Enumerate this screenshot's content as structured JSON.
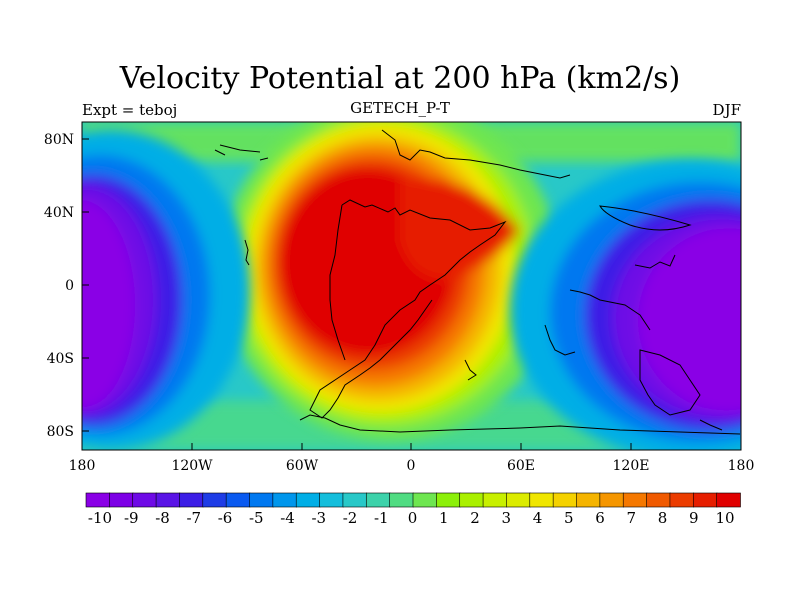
{
  "header": {
    "title": "Velocity Potential at 200 hPa (km2/s)",
    "left": "Expt = teboj",
    "center": "GETECH_P-T",
    "right": "DJF"
  },
  "map": {
    "projection": "cylindrical equidistant",
    "variable": "Velocity Potential",
    "level": "200 hPa",
    "units": "km2/s",
    "lon_range": [
      -180,
      180
    ],
    "lat_range": [
      -90,
      90
    ],
    "x_ticks": [
      "180",
      "120W",
      "60W",
      "0",
      "60E",
      "120E",
      "180"
    ],
    "y_ticks": [
      "80N",
      "40N",
      "0",
      "40S",
      "80S"
    ],
    "field_summary": {
      "max_center_lon_lat": [
        -20,
        10
      ],
      "max_value": 10,
      "min_center_west_lon_lat": [
        -170,
        0
      ],
      "min_center_east_lon_lat": [
        155,
        -10
      ],
      "min_value": -10
    }
  },
  "colorbar": {
    "labels": [
      "-10",
      "-9",
      "-8",
      "-7",
      "-6",
      "-5",
      "-4",
      "-3",
      "-2",
      "-1",
      "0",
      "1",
      "2",
      "3",
      "4",
      "5",
      "6",
      "7",
      "8",
      "9",
      "10"
    ],
    "colors": [
      "#8a00e6",
      "#7d00e6",
      "#6e0ae6",
      "#5a14e6",
      "#3c1ee6",
      "#1e3ce6",
      "#0a5af0",
      "#0078f0",
      "#0096ec",
      "#00aee6",
      "#14bedc",
      "#28c8c8",
      "#3cd2aa",
      "#50dc82",
      "#6ee650",
      "#8cf00a",
      "#aaf000",
      "#c8f000",
      "#dcec00",
      "#f0e600",
      "#f5d200",
      "#f5b400",
      "#f59600",
      "#f57800",
      "#f05a00",
      "#eb3c00",
      "#e61e00",
      "#e00000"
    ]
  }
}
